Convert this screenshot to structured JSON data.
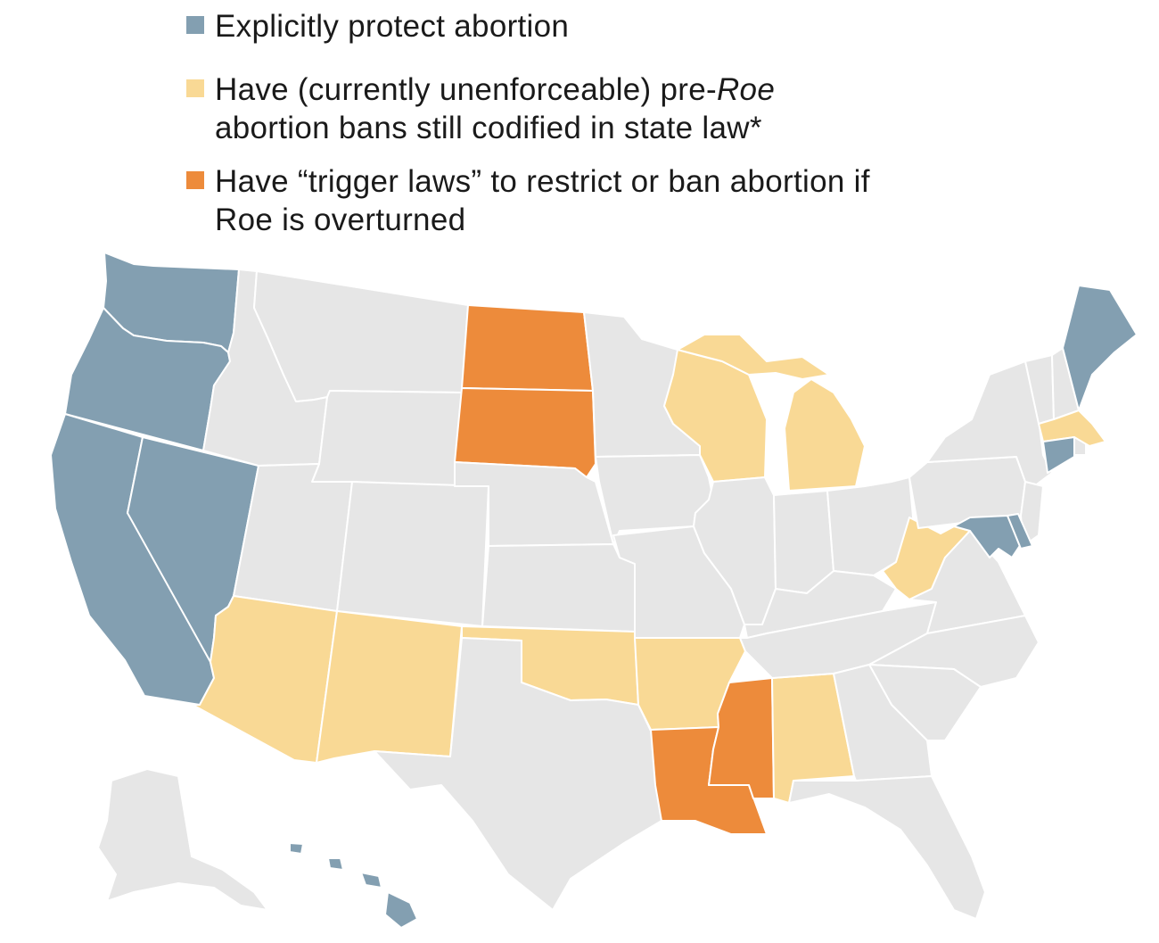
{
  "colors": {
    "protect": "#839fb1",
    "pre_roe": "#f9d995",
    "trigger": "#ed8b3b",
    "other": "#e6e6e6",
    "border": "#ffffff"
  },
  "legend": [
    {
      "key": "protect",
      "lines": [
        "Explicitly protect abortion"
      ]
    },
    {
      "key": "pre_roe",
      "lines": [
        "Have (currently unenforceable) pre-",
        "Roe",
        "abortion bans still codified in state law*"
      ]
    },
    {
      "key": "trigger",
      "lines": [
        "Have “trigger laws” to restrict or ban abortion if",
        "Roe is overturned"
      ]
    }
  ],
  "states": {
    "protect": [
      "Washington",
      "Oregon",
      "California",
      "Nevada",
      "Hawaii",
      "Maine",
      "Connecticut",
      "Maryland",
      "Delaware"
    ],
    "pre_roe": [
      "Arizona",
      "New Mexico",
      "Oklahoma",
      "Arkansas",
      "Alabama",
      "Wisconsin",
      "Michigan",
      "West Virginia",
      "Massachusetts"
    ],
    "trigger": [
      "North Dakota",
      "South Dakota",
      "Louisiana",
      "Mississippi"
    ]
  }
}
